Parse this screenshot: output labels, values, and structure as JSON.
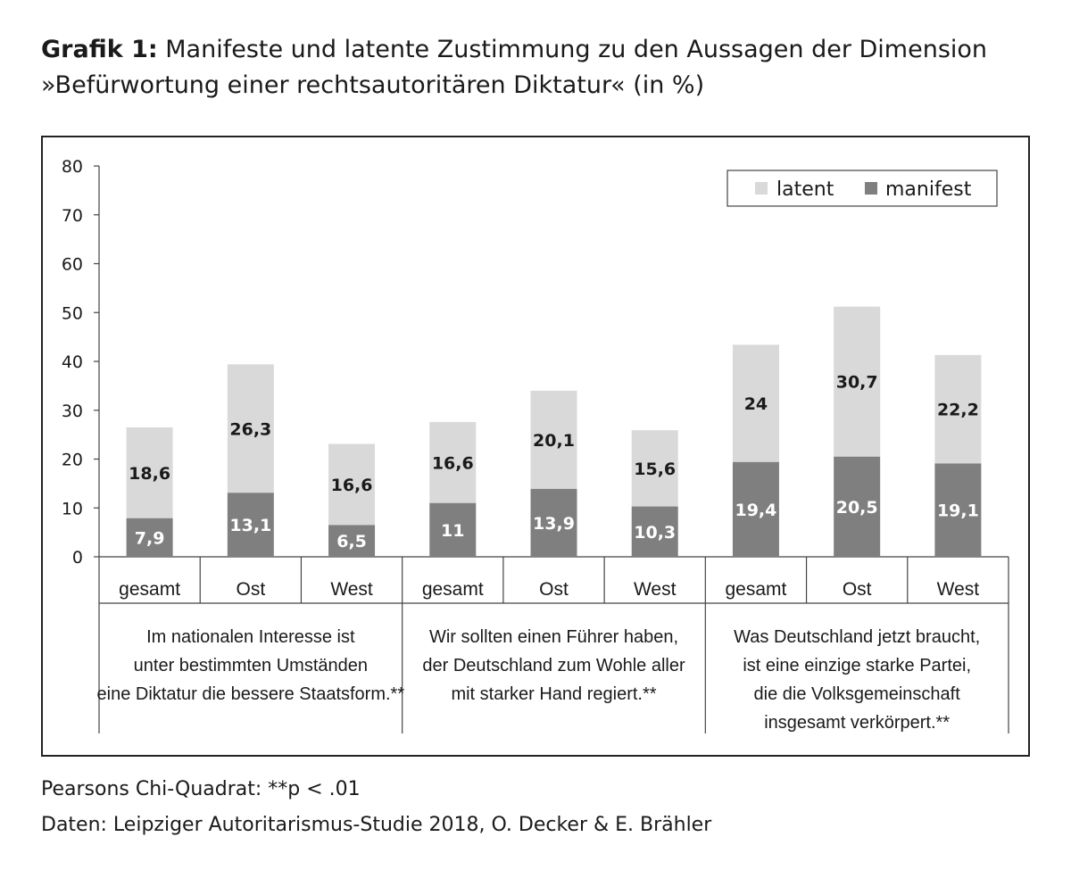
{
  "header": {
    "title_prefix": "Grafik 1:",
    "title_line1": "Manifeste und latente Zustimmung zu den Aussagen der Dimension",
    "title_line2": "»Befürwortung einer rechtsautoritären Diktatur« (in %)"
  },
  "footer": {
    "note1": "Pearsons Chi-Quadrat: **p < .01",
    "note2": "Daten: Leipziger Autoritarismus-Studie 2018, O. Decker & E. Brähler"
  },
  "colors": {
    "latent": "#d9d9d9",
    "manifest": "#7f7f7f",
    "text_dark": "#1a1a1a",
    "text_light": "#ffffff"
  },
  "chart_data": {
    "type": "bar",
    "stacked": true,
    "ylim": [
      0,
      80
    ],
    "yticks": [
      0,
      10,
      20,
      30,
      40,
      50,
      60,
      70,
      80
    ],
    "legend_position": "top-right",
    "grid": false,
    "categories": [
      "gesamt",
      "Ost",
      "West",
      "gesamt",
      "Ost",
      "West",
      "gesamt",
      "Ost",
      "West"
    ],
    "groups": [
      {
        "lines": [
          "Im nationalen Interesse ist",
          "unter bestimmten Umständen",
          "eine Diktatur die bessere Staatsform.**"
        ]
      },
      {
        "lines": [
          "Wir sollten einen Führer haben,",
          "der Deutschland zum Wohle aller",
          "mit starker Hand regiert.**"
        ]
      },
      {
        "lines": [
          "Was Deutschland jetzt braucht,",
          "ist eine einzige starke Partei,",
          "die die Volksgemeinschaft",
          "insgesamt verkörpert.**"
        ]
      }
    ],
    "series": [
      {
        "name": "manifest",
        "values": [
          7.9,
          13.1,
          6.5,
          11,
          13.9,
          10.3,
          19.4,
          20.5,
          19.1
        ],
        "labels": [
          "7,9",
          "13,1",
          "6,5",
          "11",
          "13,9",
          "10,3",
          "19,4",
          "20,5",
          "19,1"
        ]
      },
      {
        "name": "latent",
        "values": [
          18.6,
          26.3,
          16.6,
          16.6,
          20.1,
          15.6,
          24,
          30.7,
          22.2
        ],
        "labels": [
          "18,6",
          "26,3",
          "16,6",
          "16,6",
          "20,1",
          "15,6",
          "24",
          "30,7",
          "22,2"
        ]
      }
    ],
    "legend": [
      "latent",
      "manifest"
    ]
  }
}
